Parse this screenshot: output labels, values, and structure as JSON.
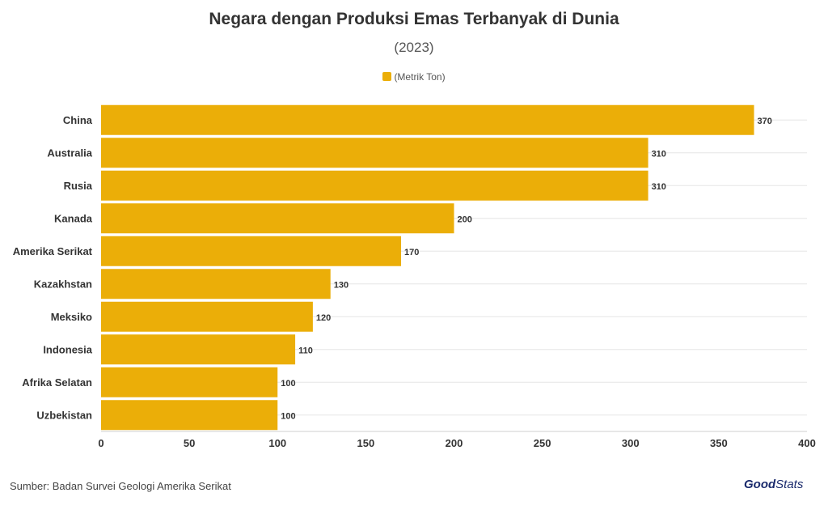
{
  "title": "Negara dengan Produksi Emas Terbanyak di Dunia",
  "subtitle": "(2023)",
  "source": "Sumber: Badan Survei Geologi Amerika Serikat",
  "logo": {
    "bold": "Good",
    "light": "Stats"
  },
  "colors": {
    "bar": "#EBAE08",
    "grid": "#e6e6e6"
  },
  "chart_data": {
    "type": "bar",
    "orientation": "horizontal",
    "title": "Negara dengan Produksi Emas Terbanyak di Dunia",
    "subtitle": "(2023)",
    "categories": [
      "China",
      "Australia",
      "Rusia",
      "Kanada",
      "Amerika Serikat",
      "Kazakhstan",
      "Meksiko",
      "Indonesia",
      "Afrika Selatan",
      "Uzbekistan"
    ],
    "series": [
      {
        "name": "(Metrik Ton)",
        "values": [
          370,
          310,
          310,
          200,
          170,
          130,
          120,
          110,
          100,
          100
        ]
      }
    ],
    "xlim": [
      0,
      400
    ],
    "xticks": [
      0,
      50,
      100,
      150,
      200,
      250,
      300,
      350,
      400
    ],
    "grid": true,
    "legend": "top-center",
    "data_labels": true
  }
}
